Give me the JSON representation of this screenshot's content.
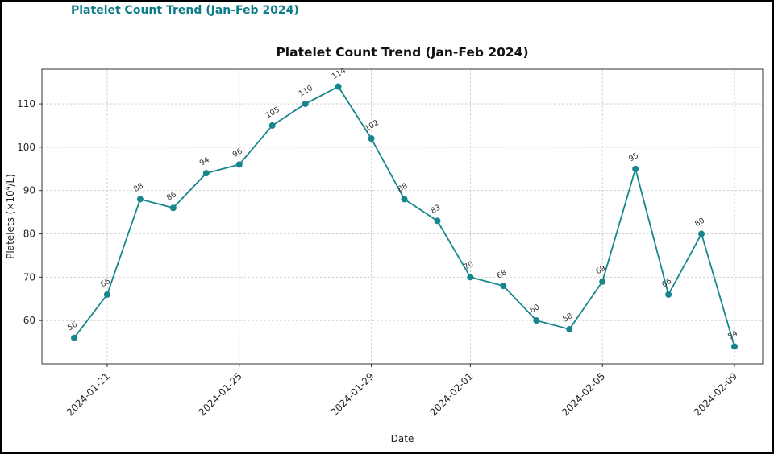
{
  "page": {
    "header": "Platelet Count Trend (Jan-Feb 2024)",
    "header_color": "#0c7d87"
  },
  "chart_data": {
    "type": "line",
    "title": "Platelet Count Trend (Jan-Feb 2024)",
    "xlabel": "Date",
    "ylabel": "Platelets (×10⁹/L)",
    "x": [
      "2024-01-20",
      "2024-01-21",
      "2024-01-22",
      "2024-01-23",
      "2024-01-24",
      "2024-01-25",
      "2024-01-26",
      "2024-01-27",
      "2024-01-28",
      "2024-01-29",
      "2024-01-30",
      "2024-01-31",
      "2024-02-01",
      "2024-02-02",
      "2024-02-03",
      "2024-02-04",
      "2024-02-05",
      "2024-02-06",
      "2024-02-07",
      "2024-02-08",
      "2024-02-09"
    ],
    "values": [
      56,
      66,
      88,
      86,
      94,
      96,
      105,
      110,
      114,
      102,
      88,
      83,
      70,
      68,
      60,
      58,
      69,
      95,
      66,
      80,
      54
    ],
    "x_ticks": [
      {
        "index": 1,
        "label": "2024-01-21"
      },
      {
        "index": 5,
        "label": "2024-01-25"
      },
      {
        "index": 9,
        "label": "2024-01-29"
      },
      {
        "index": 12,
        "label": "2024-02-01"
      },
      {
        "index": 16,
        "label": "2024-02-05"
      },
      {
        "index": 20,
        "label": "2024-02-09"
      }
    ],
    "y_ticks": [
      60,
      70,
      80,
      90,
      100,
      110
    ],
    "ylim": [
      50,
      118
    ],
    "grid": true,
    "legend": false,
    "line_color": "#17868c",
    "marker": "circle",
    "point_label_color": "#333333"
  }
}
